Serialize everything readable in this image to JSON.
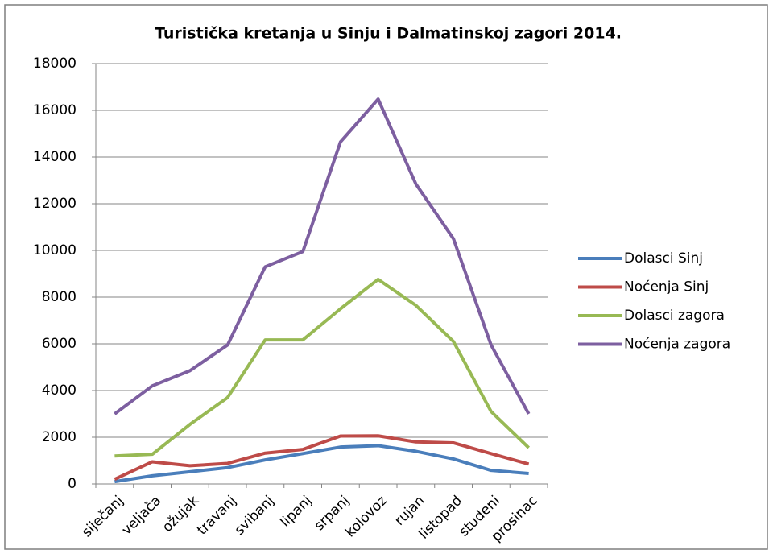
{
  "chart_data": {
    "type": "line",
    "title": "Turistička kretanja u Sinju  i Dalmatinskoj zagori 2014.",
    "categories": [
      "siječanj",
      "veljača",
      "ožujak",
      "travanj",
      "svibanj",
      "lipanj",
      "srpanj",
      "kolovoz",
      "rujan",
      "listopad",
      "studeni",
      "prosinac"
    ],
    "series": [
      {
        "name": "Dolasci Sinj",
        "color": "#4a7ebb",
        "values": [
          100,
          350,
          520,
          700,
          1030,
          1300,
          1580,
          1640,
          1400,
          1070,
          580,
          450
        ]
      },
      {
        "name": "Noćenja Sinj",
        "color": "#be4b48",
        "values": [
          200,
          950,
          780,
          880,
          1320,
          1480,
          2050,
          2060,
          1800,
          1760,
          1300,
          850
        ]
      },
      {
        "name": "Dolasci zagora",
        "color": "#98b954",
        "values": [
          1200,
          1270,
          2550,
          3700,
          6170,
          6170,
          7500,
          8760,
          7650,
          6100,
          3100,
          1550
        ]
      },
      {
        "name": "Noćenja zagora",
        "color": "#7d5fa0",
        "values": [
          3000,
          4200,
          4850,
          5950,
          9300,
          9950,
          14650,
          16480,
          12850,
          10500,
          5950,
          3000
        ]
      }
    ],
    "ylim": [
      0,
      18000
    ],
    "yticks": [
      0,
      2000,
      4000,
      6000,
      8000,
      10000,
      12000,
      14000,
      16000,
      18000
    ],
    "grid": true,
    "legend": "right"
  }
}
